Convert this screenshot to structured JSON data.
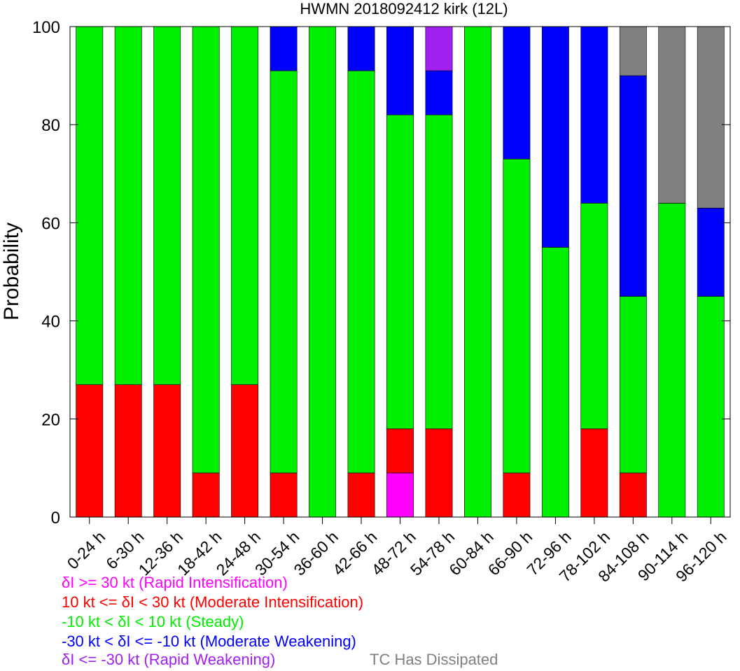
{
  "chart_data": {
    "type": "bar",
    "stacked": true,
    "title": "HWMN 2018092412 kirk (12L)",
    "ylabel": "Probability",
    "xlabel": "",
    "ylim": [
      0,
      100
    ],
    "yticks": [
      0,
      20,
      40,
      60,
      80,
      100
    ],
    "grid": false,
    "categories": [
      "0-24 h",
      "6-30 h",
      "12-36 h",
      "18-42 h",
      "24-48 h",
      "30-54 h",
      "36-60 h",
      "42-66 h",
      "48-72 h",
      "54-78 h",
      "60-84 h",
      "66-90 h",
      "72-96 h",
      "78-102 h",
      "84-108 h",
      "90-114 h",
      "96-120 h"
    ],
    "series": [
      {
        "name": "δI >= 30 kt (Rapid Intensification)",
        "color": "#ff00ff",
        "values": [
          0,
          0,
          0,
          0,
          0,
          0,
          0,
          0,
          9,
          0,
          0,
          0,
          0,
          0,
          0,
          0,
          0
        ]
      },
      {
        "name": "10 kt <= δI < 30 kt (Moderate Intensification)",
        "color": "#ff0000",
        "values": [
          27,
          27,
          27,
          9,
          27,
          9,
          0,
          9,
          9,
          18,
          0,
          9,
          0,
          18,
          9,
          0,
          0
        ]
      },
      {
        "name": "-10 kt < δI < 10 kt (Steady)",
        "color": "#00ee00",
        "values": [
          73,
          73,
          73,
          91,
          73,
          82,
          100,
          82,
          64,
          64,
          100,
          64,
          55,
          46,
          36,
          64,
          45
        ]
      },
      {
        "name": "-30 kt < δI <= -10 kt (Moderate Weakening)",
        "color": "#0000ff",
        "values": [
          0,
          0,
          0,
          0,
          0,
          9,
          0,
          9,
          18,
          9,
          0,
          27,
          45,
          36,
          45,
          0,
          18
        ]
      },
      {
        "name": "δI <= -30 kt (Rapid Weakening)",
        "color": "#a020f0",
        "values": [
          0,
          0,
          0,
          0,
          0,
          0,
          0,
          0,
          0,
          9,
          0,
          0,
          0,
          0,
          0,
          0,
          0
        ]
      },
      {
        "name": "TC Has Dissipated",
        "color": "#808080",
        "values": [
          0,
          0,
          0,
          0,
          0,
          0,
          0,
          0,
          0,
          0,
          0,
          0,
          0,
          0,
          10,
          36,
          37
        ]
      }
    ],
    "legend_position": "bottom-left"
  }
}
